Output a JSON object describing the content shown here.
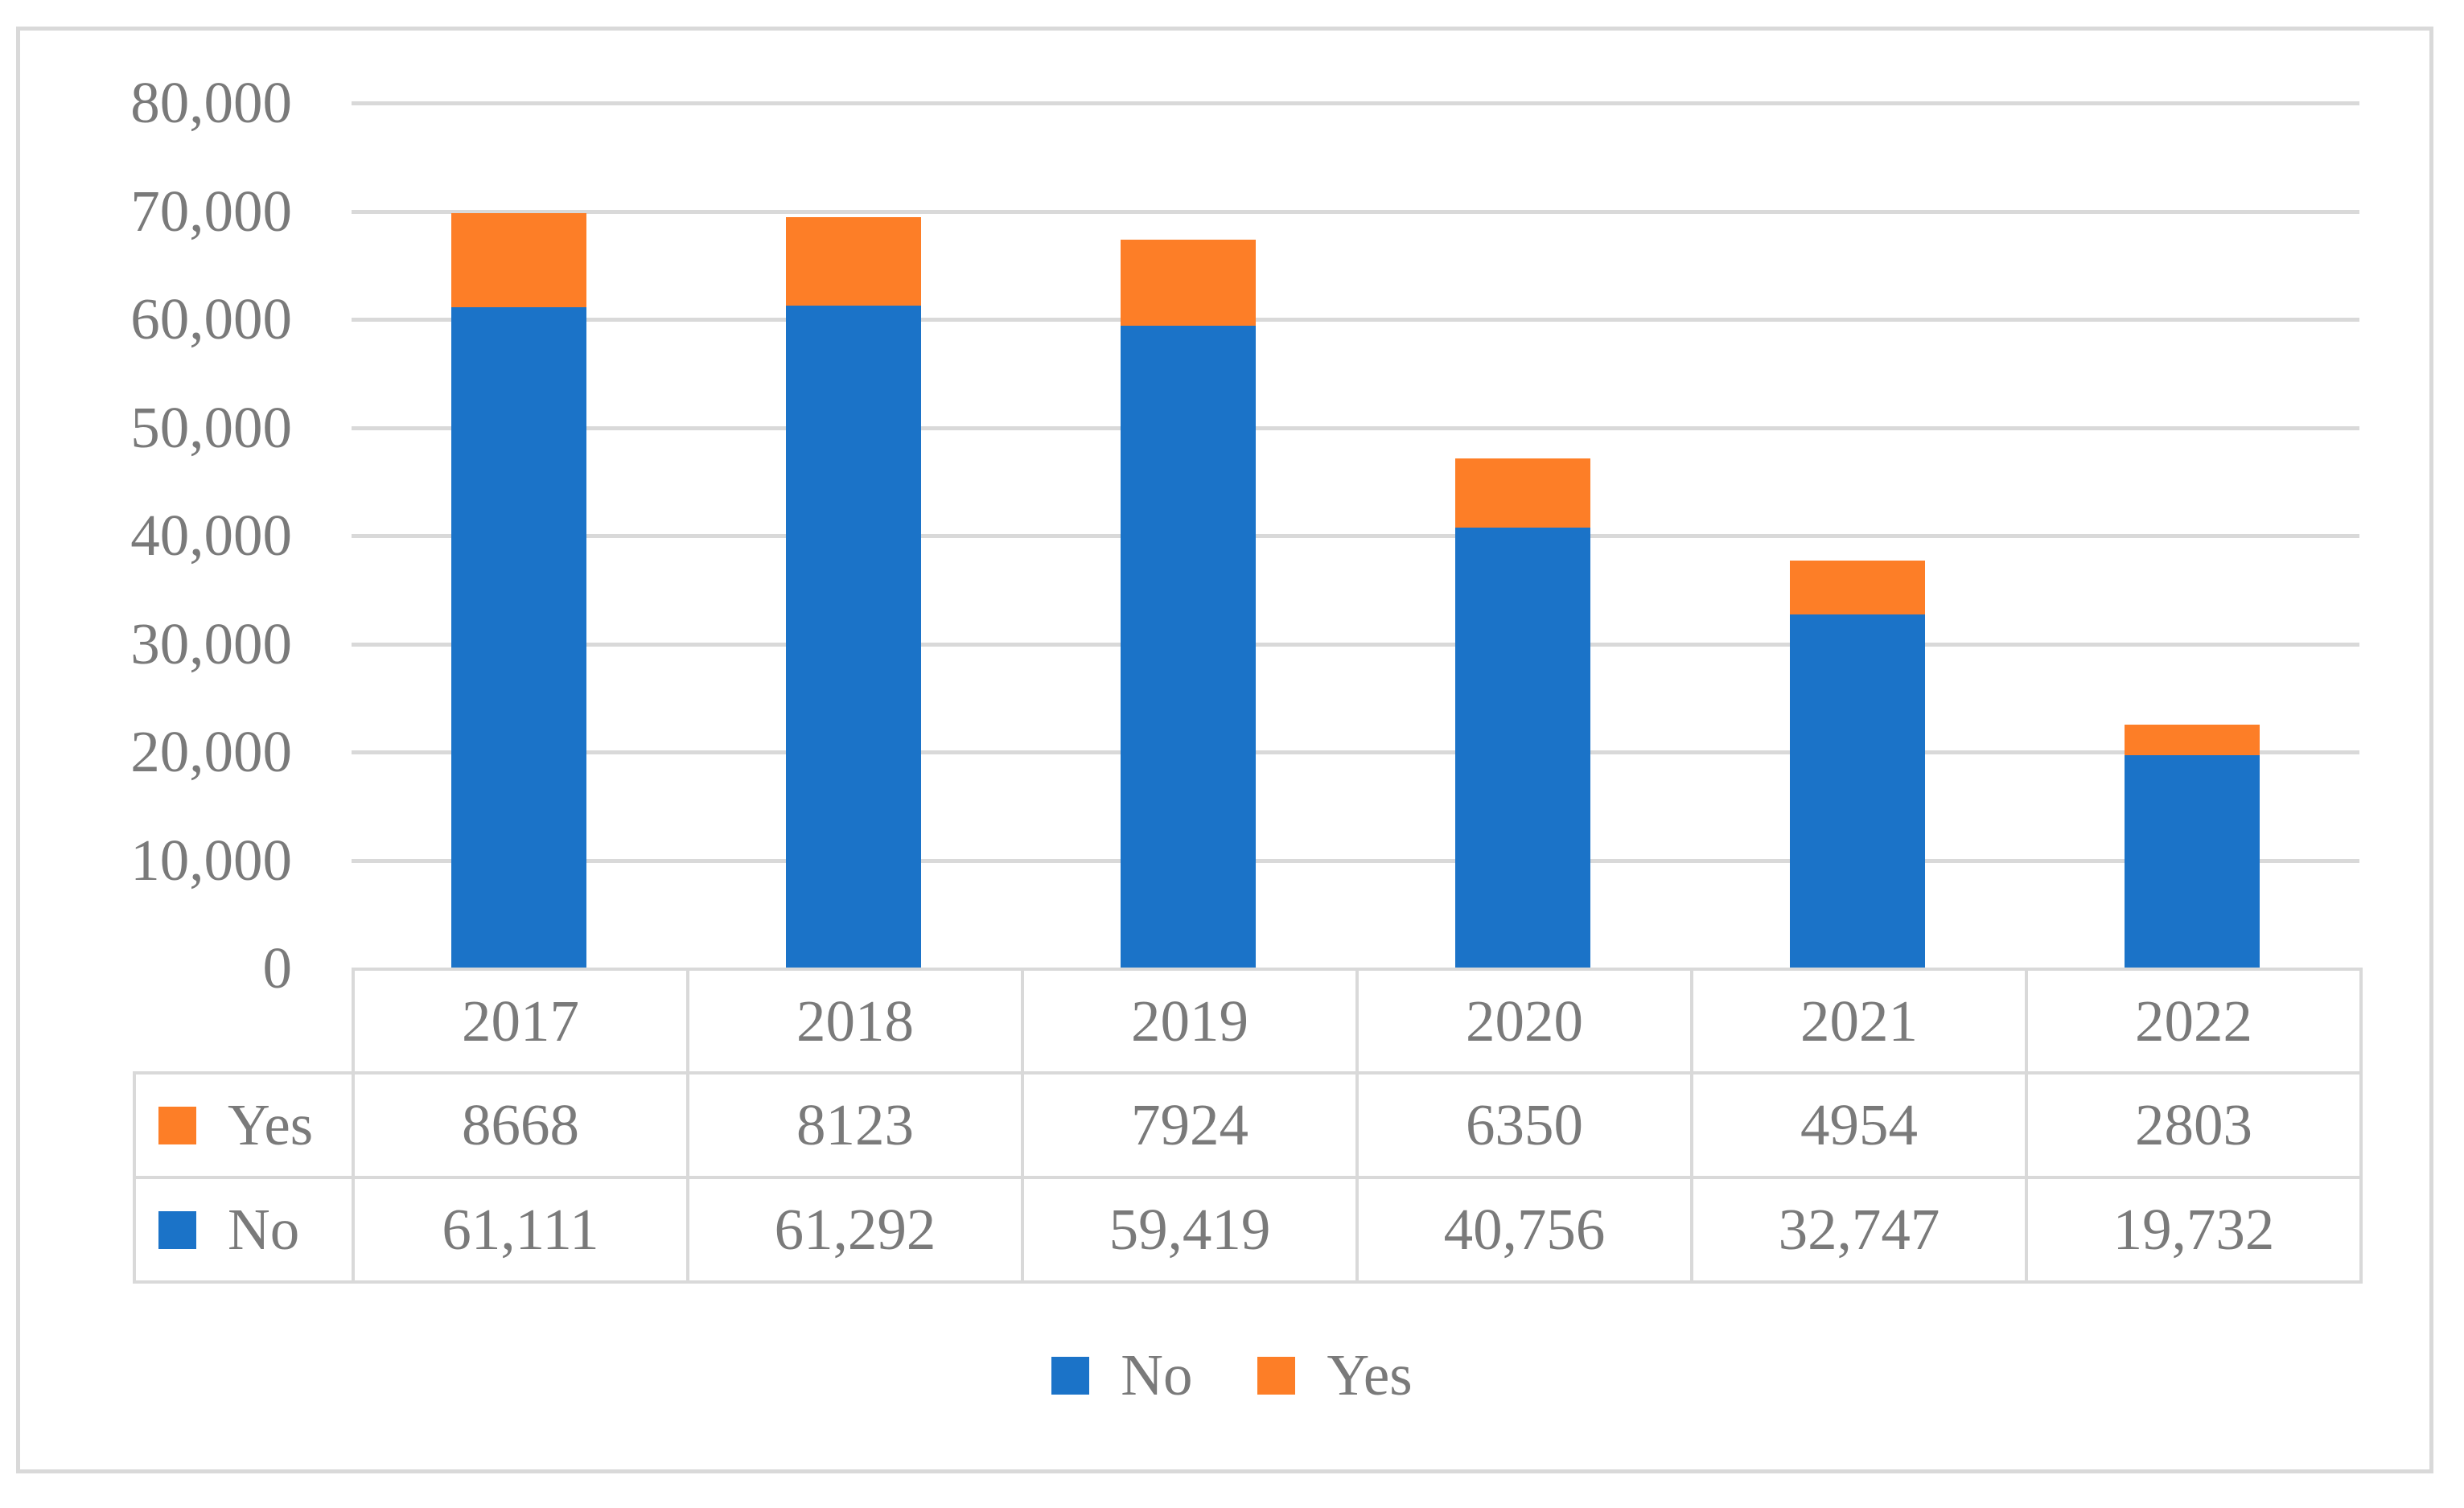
{
  "chart_data": {
    "type": "bar",
    "stacked": true,
    "title": "",
    "xlabel": "",
    "ylabel": "",
    "categories": [
      "2017",
      "2018",
      "2019",
      "2020",
      "2021",
      "2022"
    ],
    "series": [
      {
        "name": "No",
        "color": "#1b73c8",
        "values": [
          61111,
          61292,
          59419,
          40756,
          32747,
          19732
        ]
      },
      {
        "name": "Yes",
        "color": "#fd7e27",
        "values": [
          8668,
          8123,
          7924,
          6350,
          4954,
          2803
        ]
      }
    ],
    "ylim": [
      0,
      80000
    ],
    "ytick_step": 10000,
    "yticks": [
      {
        "value": 0,
        "label": "0"
      },
      {
        "value": 10000,
        "label": "10,000"
      },
      {
        "value": 20000,
        "label": "20,000"
      },
      {
        "value": 30000,
        "label": "30,000"
      },
      {
        "value": 40000,
        "label": "40,000"
      },
      {
        "value": 50000,
        "label": "50,000"
      },
      {
        "value": 60000,
        "label": "60,000"
      },
      {
        "value": 70000,
        "label": "70,000"
      },
      {
        "value": 80000,
        "label": "80,000"
      }
    ],
    "grid": true,
    "legend_position": "bottom",
    "legend": [
      {
        "label": "No",
        "color": "#1b73c8"
      },
      {
        "label": "Yes",
        "color": "#fd7e27"
      }
    ],
    "data_table": {
      "column_headers": [
        "2017",
        "2018",
        "2019",
        "2020",
        "2021",
        "2022"
      ],
      "rows": [
        {
          "name": "Yes",
          "color": "#fd7e27",
          "display_values": [
            "8668",
            "8123",
            "7924",
            "6350",
            "4954",
            "2803"
          ]
        },
        {
          "name": "No",
          "color": "#1b73c8",
          "display_values": [
            "61,111",
            "61,292",
            "59,419",
            "40,756",
            "32,747",
            "19,732"
          ]
        }
      ]
    },
    "colors": {
      "gridline": "#d9d9d9",
      "table_border": "#d9d9d9",
      "figure_border": "#d9d9d9",
      "text": "#7a7a7a",
      "background": "#ffffff"
    }
  }
}
